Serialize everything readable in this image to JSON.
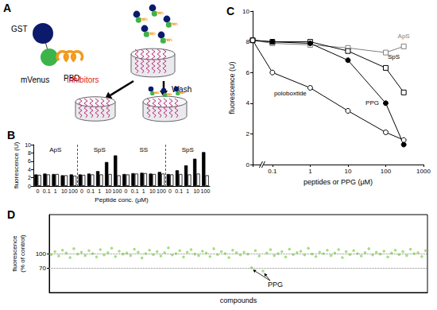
{
  "diagram": {
    "title": "A",
    "labels": {
      "gst": "GST",
      "mvenus": "mVenus",
      "pbd": "PBD",
      "inhibitors": "Inhibitors",
      "wash": "Wash"
    }
  },
  "chart_data": [
    {
      "type": "bar",
      "title": "B",
      "categories": [
        "0",
        "0.1",
        "1",
        "10",
        "100",
        "0",
        "0.1",
        "1",
        "10",
        "100",
        "0",
        "0.1",
        "1",
        "10",
        "100",
        "0",
        "0.1",
        "1",
        "10",
        "100"
      ],
      "groups": [
        "ApS",
        "SpS",
        "SS",
        "SpS"
      ],
      "series": [
        {
          "color": "#000000",
          "values": [
            2.8,
            3.0,
            2.9,
            2.6,
            2.8,
            2.8,
            3.0,
            3.6,
            5.8,
            7.4,
            2.9,
            3.1,
            3.2,
            3.0,
            3.4,
            2.9,
            3.8,
            5.0,
            6.6,
            8.2
          ]
        },
        {
          "color": "#ffffff",
          "values": [
            2.7,
            2.8,
            2.9,
            2.6,
            2.5,
            2.7,
            2.8,
            2.8,
            2.9,
            2.6,
            2.8,
            3.0,
            3.1,
            2.9,
            3.0,
            2.8,
            2.9,
            2.8,
            3.0,
            2.6
          ]
        }
      ],
      "x_label": "Peptide conc. (μM)",
      "y_label": "fluorescence (U)",
      "ylim": [
        0,
        10
      ],
      "yticks": [
        0,
        2,
        4,
        6,
        8,
        10
      ],
      "grid": false
    },
    {
      "type": "line",
      "title": "C",
      "x": [
        0.1,
        1,
        10,
        100,
        300
      ],
      "series": [
        {
          "name": "ApS",
          "color": "#808080",
          "marker": "open_square",
          "control": 8.1,
          "values": [
            7.9,
            7.8,
            7.6,
            7.3,
            7.7
          ]
        },
        {
          "name": "SpS",
          "color": "#000000",
          "marker": "open_square",
          "control": 8.1,
          "values": [
            8.0,
            8.0,
            7.4,
            6.3,
            4.7
          ]
        },
        {
          "name": "PPG",
          "color": "#000000",
          "marker": "circle",
          "control": 8.1,
          "values": [
            8.0,
            7.9,
            6.8,
            4.0,
            1.3
          ]
        },
        {
          "name": "poloboxtide",
          "color": "#000000",
          "marker": "open_circle",
          "control": 8.1,
          "values": [
            6.0,
            5.0,
            3.5,
            2.1,
            1.6
          ]
        }
      ],
      "x_label": "peptides or PPG (μM)",
      "y_label": "fluorescence (U)",
      "log": "x",
      "xlim": [
        0.03,
        1000
      ],
      "xticks": [
        0.1,
        1,
        10,
        100,
        1000
      ],
      "ylim": [
        0,
        10
      ],
      "yticks": [
        0,
        2,
        4,
        6,
        8,
        10
      ],
      "grid": false
    },
    {
      "type": "scatter",
      "title": "D",
      "series": [
        {
          "color": "#8fd460",
          "values": [
            98,
            104,
            95,
            107,
            101,
            92,
            110,
            99,
            103,
            96,
            106,
            100,
            93,
            108,
            97,
            102,
            111,
            94,
            105,
            99,
            101,
            96,
            109,
            103,
            91,
            100,
            107,
            98,
            104,
            95,
            102,
            112,
            97,
            100,
            106,
            93,
            103,
            108,
            99,
            96,
            105,
            101,
            94,
            110,
            98,
            104,
            100,
            92,
            107,
            102,
            97,
            103,
            99,
            71,
            106,
            95,
            64,
            101,
            108,
            96,
            100,
            104,
            93,
            109,
            98,
            102,
            105,
            97,
            111,
            99,
            94,
            103,
            100,
            107,
            96,
            101,
            108,
            92,
            104,
            98,
            106,
            100,
            95,
            102,
            110,
            97,
            103,
            99,
            105,
            93,
            101,
            107,
            98,
            104,
            96,
            109,
            100,
            102,
            94,
            106
          ]
        }
      ],
      "annotations": [
        {
          "text": "PPG",
          "points": [
            53,
            56
          ]
        }
      ],
      "x_label": "compounds",
      "y_label": "fluorescence\n(% of control)",
      "ylim": [
        20,
        180
      ],
      "yticks": [
        70,
        100
      ],
      "grid": true,
      "tick_labels": "y"
    }
  ]
}
